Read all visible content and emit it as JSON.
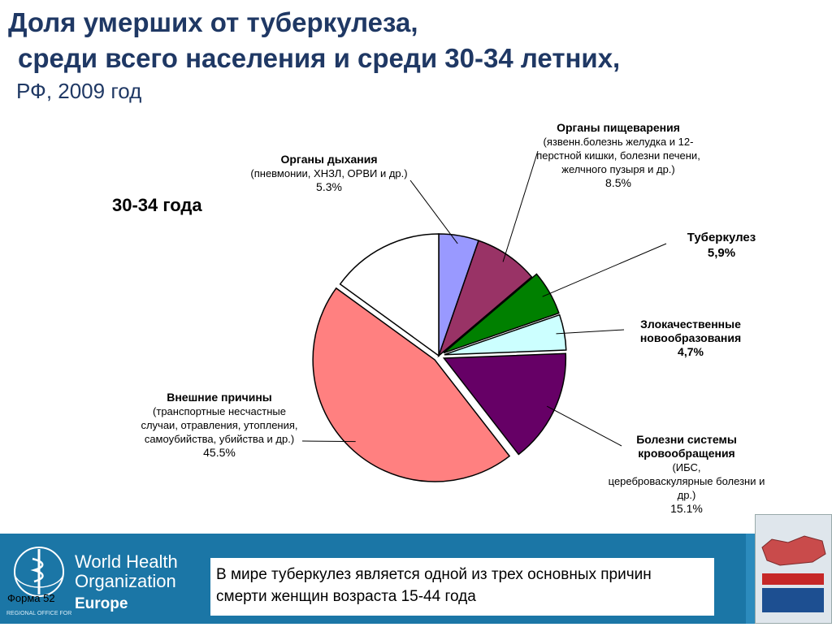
{
  "title": {
    "line1": "Доля умерших от туберкулеза,",
    "line2": "среди всего населения и среди 30-34 летних,",
    "line3": "РФ, 2009 год"
  },
  "age_group": "30-34 года",
  "labels": {
    "resp": {
      "name": "Органы дыхания",
      "detail": "(пневмонии, ХНЗЛ, ОРВИ и др.)",
      "pct": "5.3%"
    },
    "dig": {
      "name": "Органы пищеварения",
      "detail": "(язвенн.болезнь желудка и 12-перстной кишки, болезни печени,  желчного пузыря и др.)",
      "pct": "8.5%"
    },
    "tb": {
      "name": "Туберкулез",
      "pct": "5,9%"
    },
    "onc": {
      "name": "Злокачественные новообразования",
      "pct": "4,7%"
    },
    "circ": {
      "name": "Болезни системы кровообращения",
      "detail_inline": "(ИБС,",
      "detail": "цереброваскулярные болезни и др.)",
      "pct": "15.1%"
    },
    "ext": {
      "name": "Внешние причины",
      "detail": "(транспортные несчастные случаи, отравления, утопления, самоубийства, убийства и др.)",
      "pct": "45.5%"
    }
  },
  "chart_data": {
    "type": "pie",
    "title": "30-34 года",
    "slices": [
      {
        "label": "Органы дыхания",
        "value": 5.3,
        "color": "#9999ff",
        "exploded": false
      },
      {
        "label": "Органы пищеварения",
        "value": 8.5,
        "color": "#993366",
        "exploded": false
      },
      {
        "label": "Туберкулез",
        "value": 5.9,
        "color": "#008000",
        "exploded": true
      },
      {
        "label": "Злокачественные новообразования",
        "value": 4.7,
        "color": "#ccffff",
        "exploded": true
      },
      {
        "label": "Болезни системы кровообращения",
        "value": 15.1,
        "color": "#660066",
        "exploded": true
      },
      {
        "label": "Внешние причины",
        "value": 45.5,
        "color": "#ff8080",
        "exploded": true
      },
      {
        "label": "",
        "value": 15.0,
        "color": "#ffffff",
        "exploded": false
      }
    ]
  },
  "footer": {
    "org_line1": "World Health",
    "org_line2": "Organization",
    "org_region": "Europe",
    "org_small": "REGIONAL OFFICE FOR",
    "form_label": "Форма 52",
    "note": "В мире туберкулез является одной из трех основных причин смерти женщин возраста 15-44 года"
  },
  "colors": {
    "title": "#1f3864",
    "footer_bg": "#1b76a6"
  }
}
